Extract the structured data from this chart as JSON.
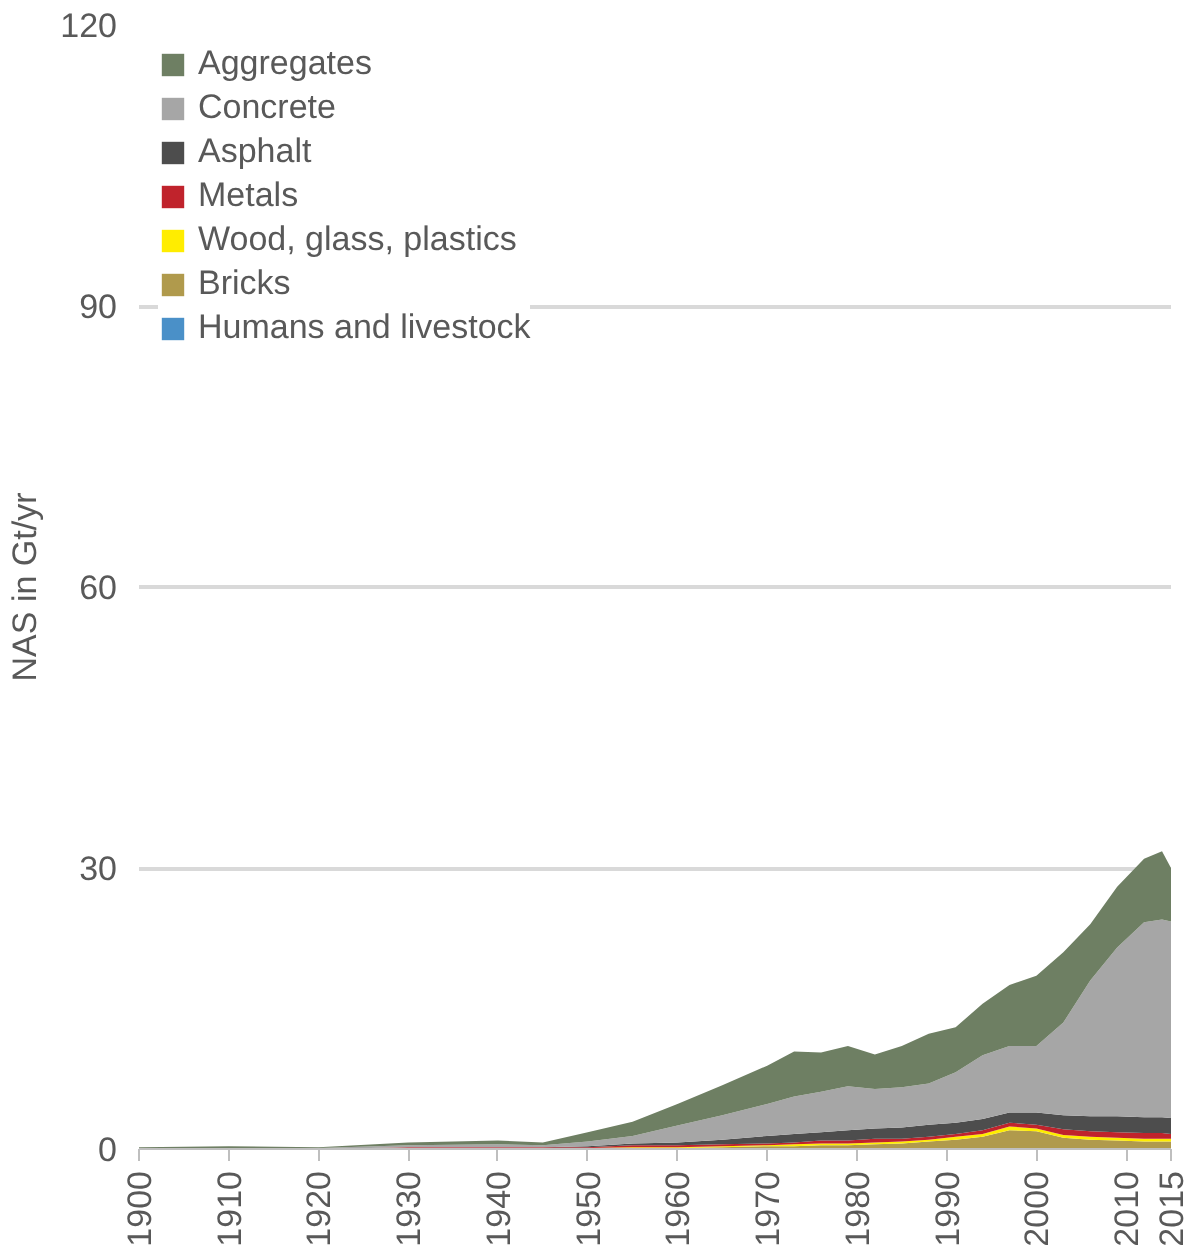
{
  "chart_data": {
    "type": "area",
    "stacked": true,
    "ylabel": "NAS in Gt/yr",
    "x": [
      1900,
      1910,
      1920,
      1930,
      1940,
      1945,
      1950,
      1955,
      1960,
      1965,
      1970,
      1973,
      1976,
      1979,
      1982,
      1985,
      1988,
      1991,
      1994,
      1997,
      2000,
      2003,
      2006,
      2009,
      2012,
      2014,
      2015
    ],
    "series": [
      {
        "name": "Humans and livestock",
        "color": "#4a90c8",
        "values": [
          null,
          null,
          null,
          null,
          null,
          null,
          null,
          null,
          null,
          null,
          null,
          null,
          null,
          null,
          null,
          null,
          null,
          null,
          null,
          null,
          null,
          null,
          null,
          null,
          null,
          null,
          null
        ]
      },
      {
        "name": "Bricks",
        "color": "#b09a4c",
        "values": [
          0,
          0,
          0,
          0.1,
          0.1,
          0.1,
          0.1,
          0.1,
          0.1,
          0.2,
          0.3,
          0.3,
          0.4,
          0.4,
          0.5,
          0.6,
          0.8,
          1.0,
          1.3,
          2.0,
          1.9,
          1.2,
          1.0,
          0.9,
          0.8,
          0.8,
          0.8
        ]
      },
      {
        "name": "Wood, glass, plastics",
        "color": "#ffed00",
        "values": [
          0,
          0,
          0,
          0,
          0,
          0,
          0,
          0.1,
          0.1,
          0.1,
          0.1,
          0.2,
          0.2,
          0.2,
          0.2,
          0.2,
          0.2,
          0.3,
          0.3,
          0.4,
          0.3,
          0.3,
          0.3,
          0.3,
          0.3,
          0.3,
          0.3
        ]
      },
      {
        "name": "Metals",
        "color": "#c0232c",
        "values": [
          0,
          0,
          0,
          0.1,
          0.1,
          0.1,
          0.1,
          0.2,
          0.2,
          0.2,
          0.2,
          0.2,
          0.3,
          0.3,
          0.4,
          0.3,
          0.3,
          0.3,
          0.4,
          0.4,
          0.4,
          0.6,
          0.6,
          0.6,
          0.6,
          0.6,
          0.5
        ]
      },
      {
        "name": "Asphalt",
        "color": "#4d4d4d",
        "values": [
          0,
          0,
          0,
          0,
          0,
          0,
          0.1,
          0.2,
          0.3,
          0.5,
          0.8,
          0.9,
          0.9,
          1.1,
          1.1,
          1.2,
          1.3,
          1.2,
          1.2,
          1.1,
          1.3,
          1.5,
          1.6,
          1.7,
          1.7,
          1.7,
          1.7
        ]
      },
      {
        "name": "Concrete",
        "color": "#a6a6a6",
        "values": [
          0.1,
          0.1,
          0.1,
          0.2,
          0.3,
          0.2,
          0.5,
          0.8,
          1.8,
          2.6,
          3.4,
          4.0,
          4.3,
          4.7,
          4.2,
          4.3,
          4.4,
          5.4,
          6.8,
          7.1,
          7.1,
          9.9,
          14.5,
          18.0,
          20.8,
          21.1,
          21.0
        ]
      },
      {
        "name": "Aggregates",
        "color": "#6e7f63",
        "values": [
          0.1,
          0.2,
          0.1,
          0.3,
          0.4,
          0.3,
          1.0,
          1.5,
          2.3,
          3.2,
          4.1,
          4.8,
          4.2,
          4.3,
          3.7,
          4.4,
          5.3,
          4.8,
          5.5,
          6.5,
          7.5,
          7.5,
          6.0,
          6.5,
          6.8,
          7.3,
          5.7
        ]
      }
    ],
    "xlim": [
      1900,
      2015
    ],
    "xticks": [
      1900,
      1910,
      1920,
      1930,
      1940,
      1950,
      1960,
      1970,
      1980,
      1990,
      2000,
      2010,
      2015
    ],
    "ylim": [
      0,
      120
    ],
    "yticks": [
      0,
      30,
      60,
      90,
      120
    ],
    "grid": "y",
    "legend": "top left"
  }
}
